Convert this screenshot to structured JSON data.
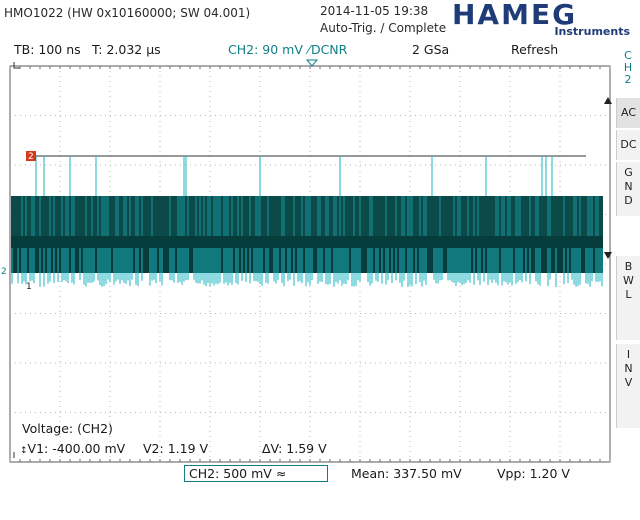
{
  "header": {
    "model_info": "HMO1022 (HW 0x10160000; SW 04.001)",
    "datetime": "2014-11-05 19:38",
    "trigger_status": "Auto-Trig. / Complete",
    "brand": "HAMEG",
    "brand_sub": "Instruments",
    "brand_color": "#1f3b78"
  },
  "status_bar": {
    "timebase": "TB: 100 ns",
    "trigger_time": "T: 2.032 µs",
    "channel_setting": "CH2: 90 mV",
    "slope_symbol": "⁄",
    "coupling": "DCNR",
    "sample_rate": "2 GSa",
    "mode": "Refresh"
  },
  "side_menu": {
    "channel_label": [
      "C",
      "H",
      "2"
    ],
    "buttons": [
      {
        "id": "ac",
        "label": [
          "AC"
        ],
        "selected": true
      },
      {
        "id": "dc",
        "label": [
          "DC"
        ],
        "selected": false
      },
      {
        "id": "gnd",
        "label": [
          "G",
          "N",
          "D"
        ],
        "selected": false
      },
      {
        "id": "bwl",
        "label": [
          "B",
          "W",
          "L"
        ],
        "selected": false
      },
      {
        "id": "inv",
        "label": [
          "I",
          "N",
          "V"
        ],
        "selected": false
      }
    ]
  },
  "markers": {
    "ref_marker": "2",
    "trigger_level_marker": "2",
    "ch_ground_marker": "2",
    "cursor1_marker": "1"
  },
  "measurement": {
    "title": "Voltage: (CH2)",
    "v1": "V1: -400.00 mV",
    "v2": "V2: 1.19 V",
    "dv": "ΔV: 1.59 V"
  },
  "bottom_bar": {
    "ch2_scale": "CH2: 500 mV",
    "ac_symbol": "≈",
    "mean": "Mean: 337.50 mV",
    "vpp": "Vpp: 1.20 V"
  },
  "colors": {
    "trace": "#1bb5c0",
    "trace_dark": "#073c3c",
    "grid": "#b8b8b8",
    "ref_marker": "#d23a1a"
  }
}
